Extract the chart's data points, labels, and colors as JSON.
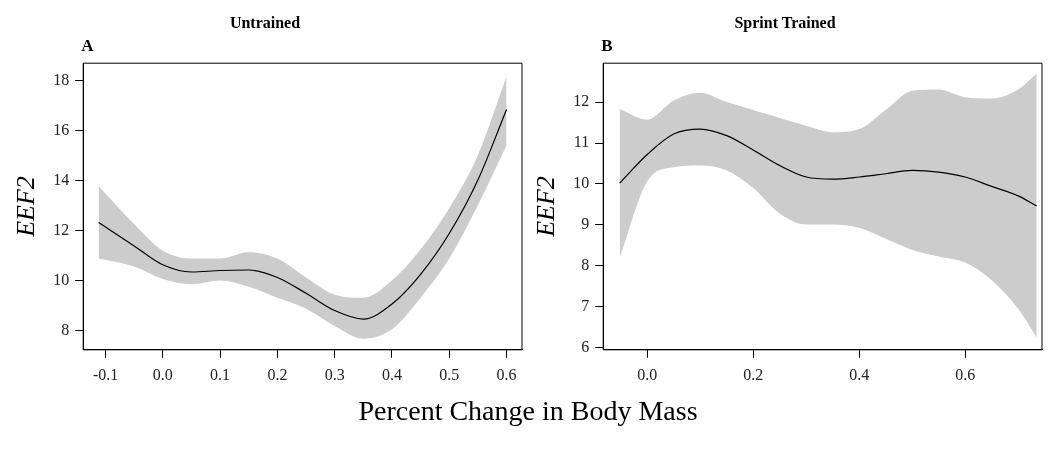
{
  "chart_data": [
    {
      "type": "line",
      "title": "Untrained",
      "xlabel": "Percent Change in Body Mass",
      "ylabel": "EEF2",
      "annotations": [
        "A"
      ],
      "xlim": [
        -0.139,
        0.627
      ],
      "ylim": [
        7.23,
        18.69
      ],
      "xticks": [
        {
          "value": -0.1,
          "label": "-0.1"
        },
        {
          "value": 0,
          "label": "0.0"
        },
        {
          "value": 0.1,
          "label": "0.1"
        },
        {
          "value": 0.2,
          "label": "0.2"
        },
        {
          "value": 0.3,
          "label": "0.3"
        },
        {
          "value": 0.4,
          "label": "0.4"
        },
        {
          "value": 0.5,
          "label": "0.5"
        },
        {
          "value": 0.6,
          "label": "0.6"
        }
      ],
      "yticks": [
        8,
        10,
        12,
        14,
        16,
        18
      ],
      "x": [
        -0.112,
        -0.05,
        0.0,
        0.05,
        0.1,
        0.15,
        0.2,
        0.25,
        0.3,
        0.35,
        0.4,
        0.45,
        0.5,
        0.55,
        0.6
      ],
      "series": [
        {
          "color": "#000000",
          "values": [
            12.32,
            11.38,
            10.63,
            10.34,
            10.4,
            10.42,
            10.12,
            9.49,
            8.8,
            8.46,
            9.06,
            10.25,
            11.88,
            14.02,
            16.84
          ],
          "lower": [
            10.88,
            10.56,
            10.06,
            9.85,
            10.0,
            9.75,
            9.31,
            8.87,
            8.18,
            7.67,
            8.05,
            9.31,
            10.88,
            13.01,
            15.4
          ],
          "upper": [
            13.77,
            12.26,
            11.19,
            10.88,
            10.88,
            11.13,
            10.88,
            10.12,
            9.43,
            9.31,
            10.0,
            11.25,
            12.89,
            15.02,
            18.16
          ]
        }
      ],
      "grid": false,
      "legend": false,
      "marker": "none",
      "line_style": "solid"
    },
    {
      "type": "line",
      "title": "Sprint Trained",
      "ylabel": "EEF2",
      "annotations": [
        "B"
      ],
      "xlim": [
        -0.083,
        0.745
      ],
      "ylim": [
        5.95,
        12.95
      ],
      "xticks": [
        {
          "value": 0,
          "label": "0.0"
        },
        {
          "value": 0.2,
          "label": "0.2"
        },
        {
          "value": 0.4,
          "label": "0.4"
        },
        {
          "value": 0.6,
          "label": "0.6"
        }
      ],
      "yticks": [
        6,
        7,
        8,
        9,
        10,
        11,
        12
      ],
      "x": [
        -0.052,
        0.0,
        0.05,
        0.1,
        0.15,
        0.2,
        0.25,
        0.3,
        0.35,
        0.4,
        0.45,
        0.5,
        0.55,
        0.6,
        0.65,
        0.7,
        0.735
      ],
      "series": [
        {
          "color": "#000000",
          "values": [
            10.02,
            10.72,
            11.22,
            11.34,
            11.18,
            10.83,
            10.45,
            10.17,
            10.12,
            10.17,
            10.25,
            10.33,
            10.29,
            10.17,
            9.94,
            9.71,
            9.46
          ],
          "lower": [
            8.19,
            10.06,
            10.41,
            10.45,
            10.33,
            9.9,
            9.28,
            9.01,
            9.01,
            8.93,
            8.66,
            8.39,
            8.23,
            8.08,
            7.65,
            6.95,
            6.25
          ],
          "upper": [
            11.83,
            11.57,
            12.04,
            12.23,
            12.0,
            11.81,
            11.61,
            11.42,
            11.26,
            11.34,
            11.81,
            12.28,
            12.31,
            12.12,
            12.09,
            12.31,
            12.7
          ]
        }
      ],
      "grid": false,
      "legend": false,
      "marker": "none",
      "line_style": "solid"
    }
  ]
}
